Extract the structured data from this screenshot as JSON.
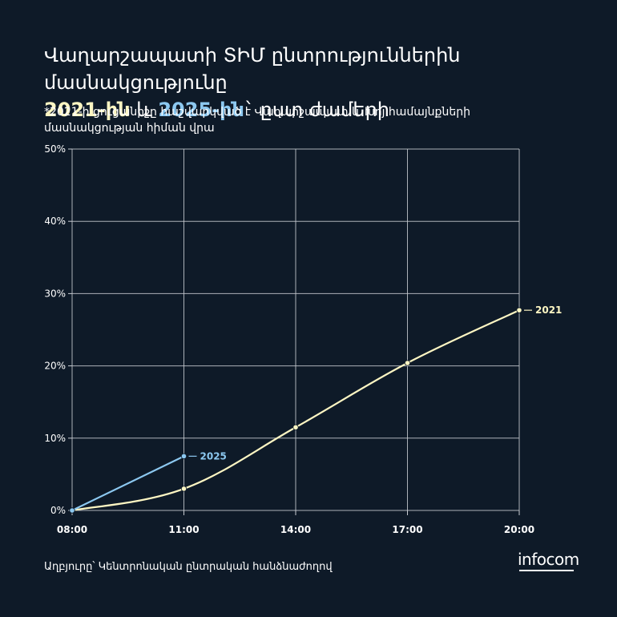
{
  "title": {
    "line1": "Վաղարշապատի ՏԻՄ ընտրություններին մասնակցությունը",
    "y2021": "2021-ին",
    "conj": " և ",
    "y2025": "2025-ին",
    "tail": "` ըստ ժամերի"
  },
  "note": "*2021-ի ցուցանիշը հաշվարկված է Վաղարշապատ և Խոյ համայնքների մասնակցության հիման վրա",
  "source": "Աղբյուրը՝ Կենտրոնական ընտրական հանձնաժողով",
  "logo": "infocom",
  "colors": {
    "background": "#0e1a28",
    "series_2021": "#fdf6c3",
    "series_2025": "#8cc8f0",
    "grid": "#c8ccd2"
  },
  "chart_data": {
    "type": "line",
    "x_ticks": [
      "08:00",
      "11:00",
      "14:00",
      "17:00",
      "20:00"
    ],
    "y_ticks": [
      "0%",
      "10%",
      "20%",
      "30%",
      "40%",
      "50%"
    ],
    "ylim": [
      0,
      50
    ],
    "grid": true,
    "series": [
      {
        "name": "2021",
        "x": [
          "08:00",
          "11:00",
          "14:00",
          "17:00",
          "20:00"
        ],
        "values": [
          0,
          3,
          11.5,
          20.4,
          27.7
        ]
      },
      {
        "name": "2025",
        "x": [
          "08:00",
          "11:00"
        ],
        "values": [
          0,
          7.5
        ]
      }
    ]
  }
}
